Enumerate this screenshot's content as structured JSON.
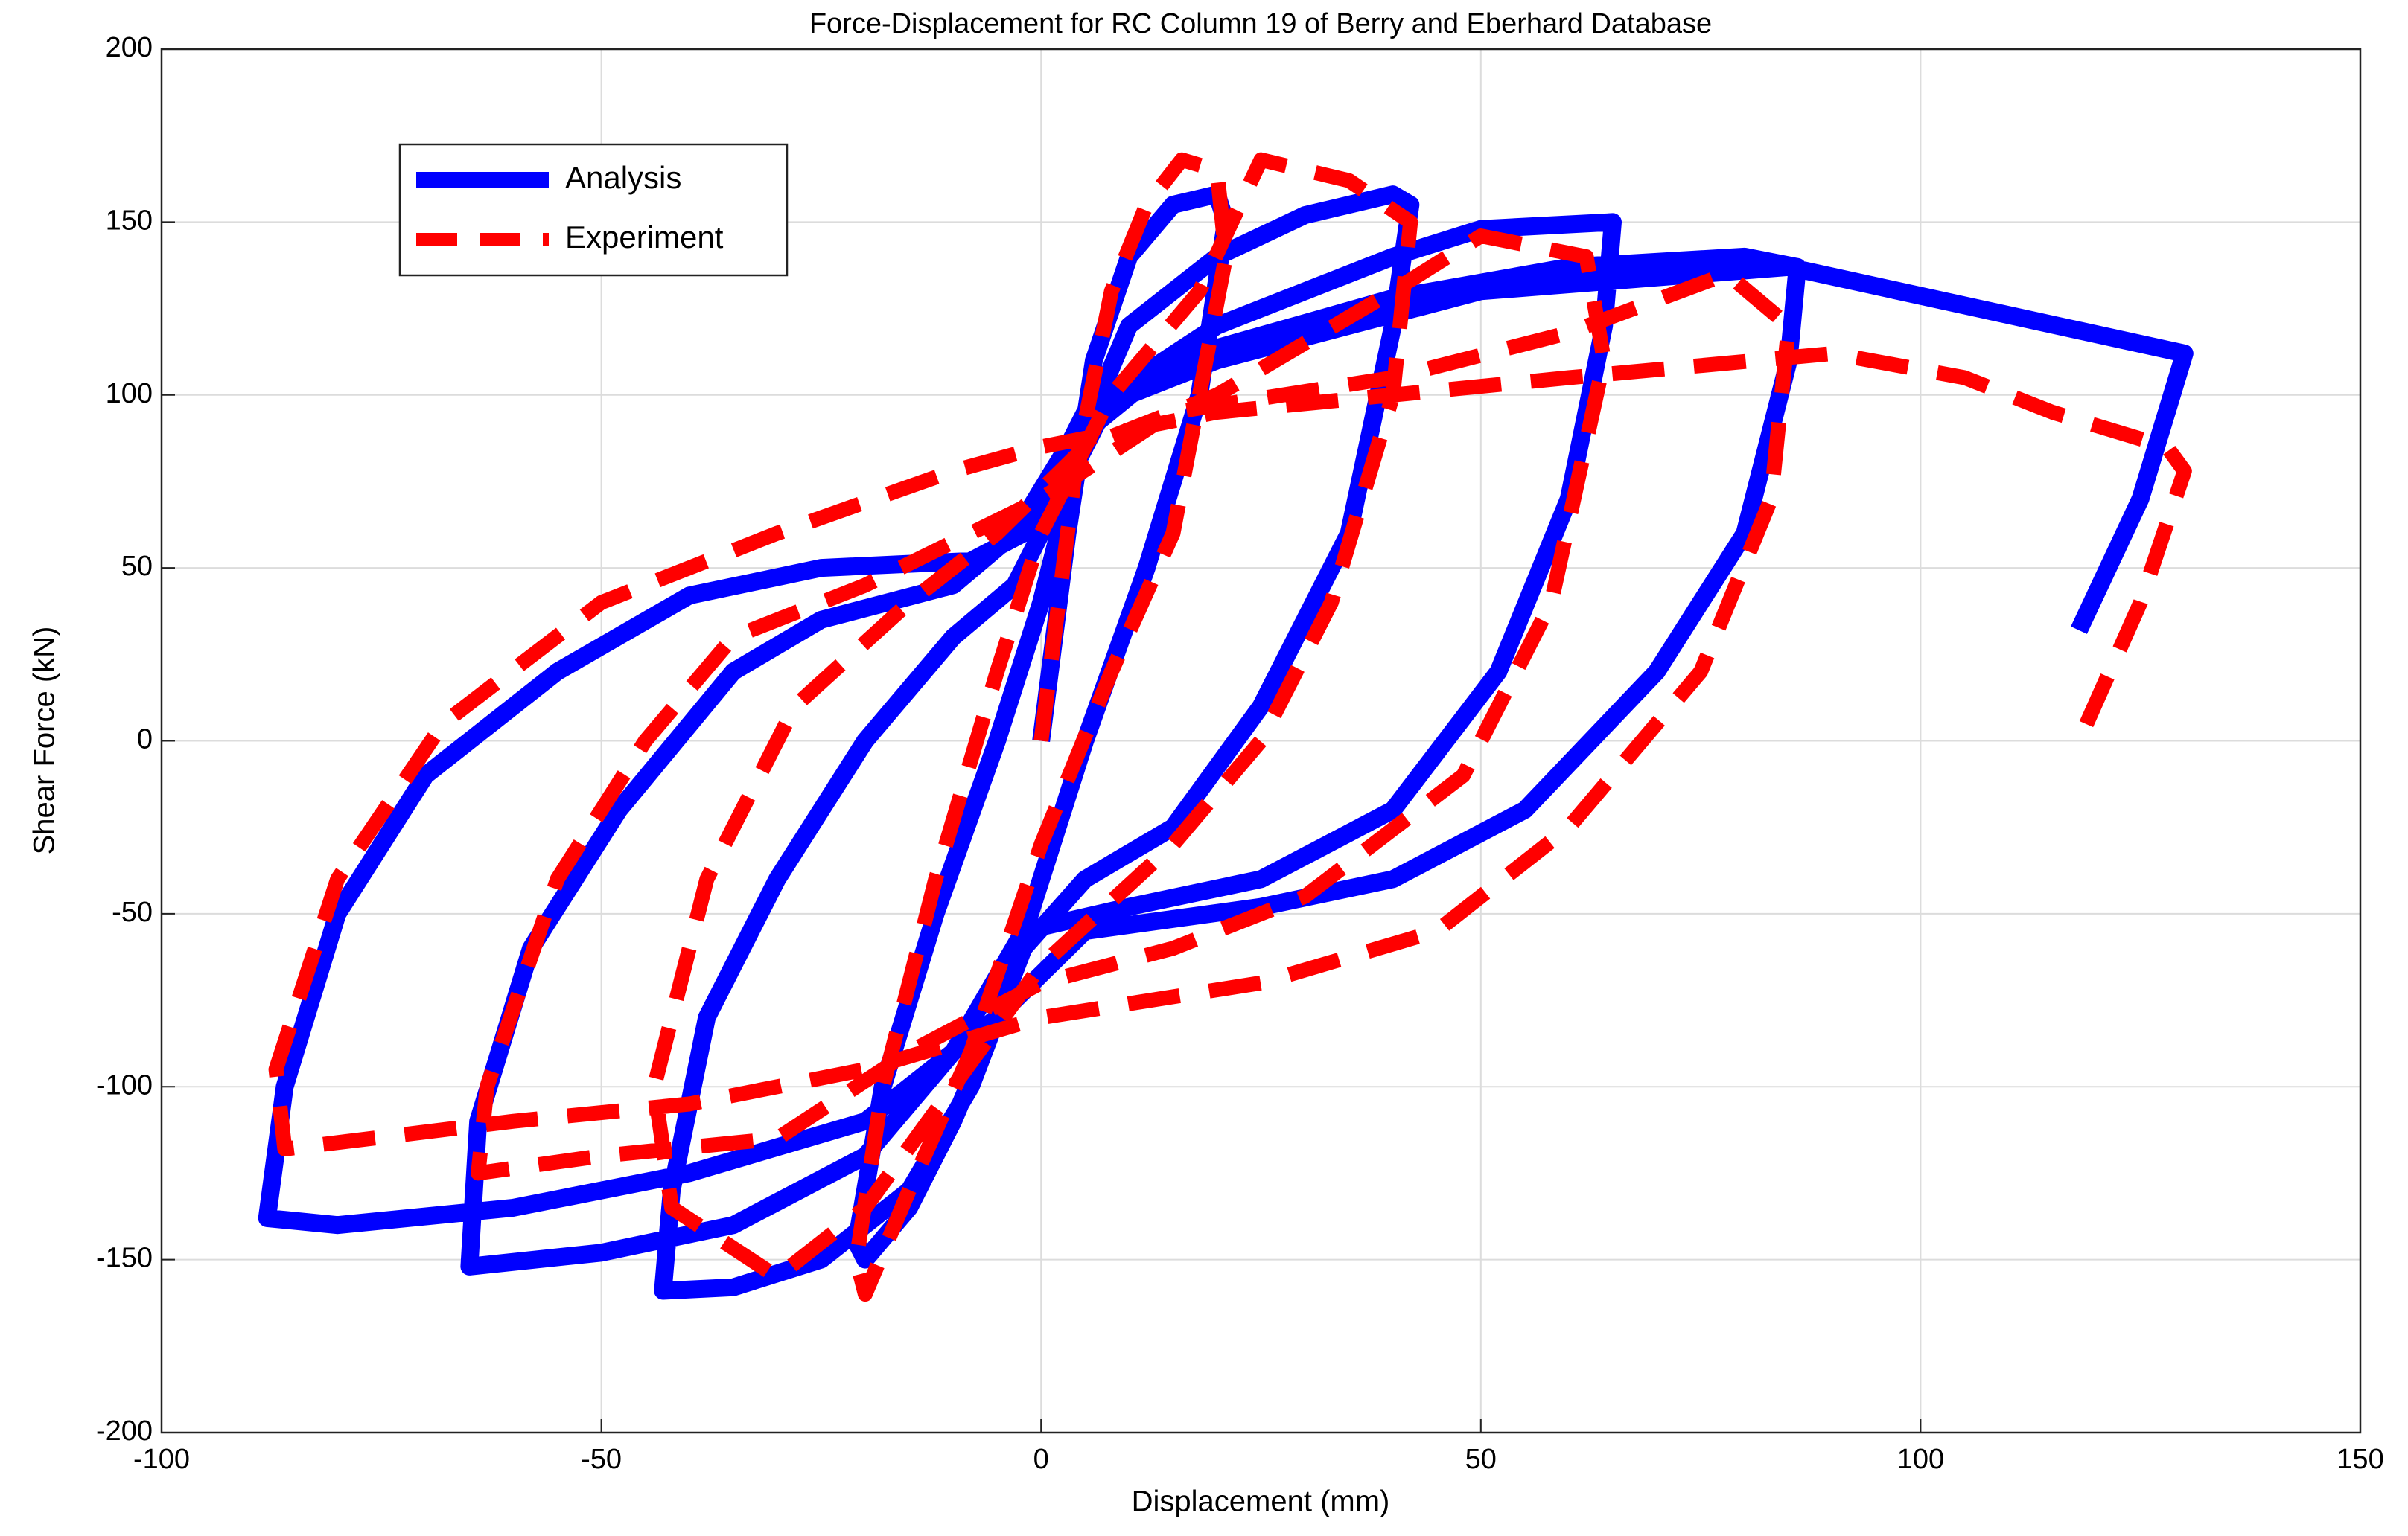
{
  "chart_data": {
    "type": "line",
    "title": "Force-Displacement for RC Column 19 of Berry and Eberhard Database",
    "xlabel": "Displacement (mm)",
    "ylabel": "Shear Force (kN)",
    "xlim": [
      -100,
      150
    ],
    "xticks": [
      -100,
      -50,
      0,
      50,
      100,
      150
    ],
    "ylim": [
      -200,
      200
    ],
    "yticks": [
      -200,
      -150,
      -100,
      -50,
      0,
      50,
      100,
      150,
      200
    ],
    "grid": true,
    "legend": "upper left",
    "series": [
      {
        "name": "Analysis",
        "color": "#0000ff",
        "dash": "solid",
        "x": [
          0,
          3,
          6,
          10,
          15,
          20,
          21,
          18,
          12,
          5,
          0,
          -5,
          -10,
          -15,
          -20,
          -21,
          -18,
          -12,
          -5,
          0,
          5,
          10,
          20,
          30,
          40,
          42,
          40,
          35,
          25,
          15,
          5,
          -2,
          -8,
          -15,
          -25,
          -35,
          -43,
          -42,
          -38,
          -30,
          -20,
          -10,
          -3,
          2,
          8,
          20,
          40,
          50,
          65,
          64,
          60,
          52,
          40,
          25,
          10,
          -2,
          -10,
          -20,
          -35,
          -50,
          -65,
          -64,
          -58,
          -48,
          -35,
          -25,
          -10,
          -3,
          3,
          15,
          40,
          60,
          80,
          86,
          85,
          80,
          70,
          55,
          40,
          25,
          5,
          -5,
          -20,
          -40,
          -60,
          -80,
          -88,
          -86,
          -80,
          -70,
          -55,
          -40,
          -25,
          -8,
          -2,
          5,
          20,
          50,
          85,
          130,
          125,
          118
        ],
        "values": [
          0,
          60,
          110,
          140,
          155,
          158,
          150,
          100,
          50,
          0,
          -40,
          -80,
          -110,
          -135,
          -150,
          -145,
          -100,
          -50,
          0,
          40,
          90,
          120,
          140,
          152,
          158,
          155,
          120,
          60,
          10,
          -25,
          -40,
          -60,
          -100,
          -130,
          -150,
          -158,
          -159,
          -130,
          -80,
          -40,
          0,
          30,
          45,
          70,
          100,
          120,
          140,
          148,
          150,
          120,
          70,
          20,
          -20,
          -40,
          -48,
          -55,
          -90,
          -120,
          -140,
          -148,
          -152,
          -110,
          -60,
          -20,
          20,
          35,
          45,
          60,
          85,
          110,
          128,
          137,
          140,
          137,
          110,
          60,
          20,
          -20,
          -40,
          -48,
          -55,
          -80,
          -110,
          -125,
          -135,
          -140,
          -138,
          -100,
          -50,
          -10,
          20,
          42,
          50,
          52,
          60,
          95,
          110,
          130,
          137,
          112,
          70,
          32
        ]
      },
      {
        "name": "Experiment",
        "color": "#ff0000",
        "dash": "dashed",
        "x": [
          0,
          4,
          8,
          12,
          16,
          20,
          21,
          15,
          8,
          0,
          -8,
          -15,
          -20,
          -21,
          -18,
          -12,
          -5,
          0,
          8,
          18,
          25,
          35,
          42,
          40,
          33,
          25,
          15,
          0,
          -10,
          -20,
          -30,
          -42,
          -44,
          -38,
          -28,
          -15,
          -5,
          5,
          20,
          40,
          50,
          62,
          64,
          58,
          48,
          30,
          15,
          0,
          -15,
          -30,
          -50,
          -64,
          -63,
          -55,
          -45,
          -35,
          -20,
          0,
          15,
          40,
          60,
          78,
          85,
          83,
          75,
          60,
          45,
          25,
          0,
          -20,
          -40,
          -60,
          -86,
          -87,
          -80,
          -68,
          -50,
          -30,
          -10,
          0,
          20,
          60,
          90,
          105,
          115,
          128,
          130,
          125,
          118
        ],
        "values": [
          0,
          80,
          130,
          155,
          168,
          165,
          140,
          60,
          20,
          -30,
          -90,
          -130,
          -160,
          -150,
          -100,
          -40,
          20,
          60,
          100,
          130,
          168,
          162,
          150,
          100,
          40,
          0,
          -30,
          -65,
          -100,
          -135,
          -155,
          -135,
          -100,
          -40,
          10,
          40,
          60,
          85,
          100,
          130,
          146,
          140,
          110,
          40,
          -10,
          -45,
          -60,
          -70,
          -90,
          -115,
          -120,
          -125,
          -100,
          -40,
          0,
          30,
          45,
          70,
          95,
          105,
          118,
          135,
          120,
          70,
          20,
          -25,
          -55,
          -70,
          -80,
          -95,
          -105,
          -110,
          -118,
          -95,
          -40,
          5,
          40,
          60,
          78,
          85,
          95,
          105,
          112,
          105,
          95,
          85,
          78,
          40,
          0
        ]
      }
    ]
  }
}
